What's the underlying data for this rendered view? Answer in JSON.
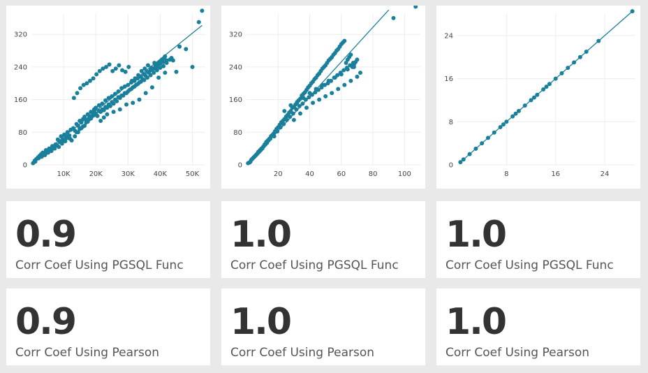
{
  "colors": {
    "accent": "#1a7f9a",
    "grid": "#ececec",
    "text": "#333333",
    "background": "#e9e9e9"
  },
  "chart_data": [
    {
      "type": "scatter",
      "xlim": [
        0,
        54000
      ],
      "ylim": [
        0,
        370
      ],
      "x_ticks": [
        10000,
        20000,
        30000,
        40000,
        50000
      ],
      "x_tick_labels": [
        "10K",
        "20K",
        "30K",
        "40K",
        "50K"
      ],
      "y_ticks": [
        0,
        80,
        160,
        240,
        320
      ],
      "y_tick_labels": [
        "0",
        "80",
        "160",
        "240",
        "320"
      ],
      "trendline": {
        "x": [
          500,
          53000
        ],
        "y": [
          8,
          342
        ]
      },
      "points": {
        "x": [
          500,
          1000,
          1500,
          2000,
          2500,
          3000,
          3500,
          4000,
          4500,
          5000,
          5500,
          6000,
          6500,
          7000,
          7500,
          1200,
          2200,
          3200,
          4200,
          5200,
          6200,
          7200,
          8000,
          8500,
          9000,
          9500,
          10000,
          10500,
          11000,
          11500,
          12000,
          8200,
          9200,
          10200,
          11200,
          12200,
          13000,
          13500,
          14000,
          14500,
          15000,
          15500,
          16000,
          16500,
          17000,
          17500,
          18000,
          18500,
          19000,
          19500,
          20000,
          21000,
          22000,
          23000,
          24000,
          25000,
          26000,
          27000,
          28000,
          29000,
          30000,
          31000,
          32000,
          33000,
          34000,
          35000,
          36000,
          37000,
          38000,
          39000,
          40000,
          41000,
          42000,
          13200,
          14200,
          15200,
          16200,
          17200,
          18200,
          19200,
          20200,
          21200,
          22200,
          23200,
          24200,
          25200,
          26200,
          27200,
          28200,
          29200,
          30200,
          31200,
          32200,
          33200,
          34200,
          35200,
          36200,
          37200,
          38200,
          39200,
          40200,
          41200,
          14000,
          15000,
          16000,
          17000,
          18000,
          19000,
          20000,
          21000,
          22000,
          23000,
          24000,
          25000,
          26000,
          27000,
          28000,
          29000,
          30000,
          31000,
          32000,
          33000,
          34000,
          35000,
          36000,
          37000,
          38000,
          39000,
          40000,
          41000,
          42000,
          43000,
          12500,
          13500,
          14500,
          15500,
          16500,
          17500,
          18500,
          19500,
          20500,
          21500,
          22500,
          23500,
          24500,
          25500,
          26500,
          27500,
          28500,
          29500,
          30500,
          31500,
          32500,
          33500,
          34500,
          35500,
          36500,
          37500,
          38500,
          39500,
          40500,
          41500,
          44000,
          45000,
          46000,
          48000,
          50000,
          52000,
          53000,
          43500,
          2800,
          3800,
          4800,
          5800,
          6800,
          7800,
          8800,
          9800,
          10800,
          11800,
          21500,
          22500,
          23500,
          25500,
          27500,
          29500,
          31500,
          33500,
          35500,
          37500,
          39500,
          41500
        ],
        "y": [
          4,
          10,
          14,
          18,
          22,
          26,
          30,
          28,
          36,
          34,
          40,
          38,
          46,
          44,
          50,
          8,
          16,
          20,
          24,
          30,
          34,
          40,
          48,
          44,
          56,
          52,
          60,
          58,
          66,
          70,
          64,
          62,
          70,
          74,
          80,
          86,
          90,
          84,
          100,
          96,
          108,
          104,
          112,
          118,
          110,
          124,
          120,
          130,
          128,
          136,
          140,
          146,
          150,
          158,
          164,
          168,
          174,
          180,
          188,
          192,
          196,
          202,
          206,
          212,
          216,
          222,
          228,
          232,
          236,
          240,
          248,
          252,
          256,
          164,
          176,
          188,
          196,
          200,
          206,
          212,
          222,
          230,
          236,
          240,
          246,
          230,
          236,
          244,
          232,
          228,
          240,
          206,
          212,
          220,
          230,
          236,
          244,
          238,
          250,
          246,
          254,
          262,
          80,
          88,
          94,
          104,
          112,
          120,
          126,
          132,
          136,
          142,
          148,
          154,
          160,
          166,
          170,
          176,
          180,
          186,
          192,
          198,
          204,
          208,
          214,
          220,
          226,
          232,
          238,
          242,
          250,
          258,
          60,
          70,
          80,
          90,
          96,
          106,
          114,
          122,
          120,
          130,
          134,
          140,
          144,
          150,
          156,
          164,
          170,
          176,
          184,
          190,
          196,
          202,
          210,
          218,
          226,
          234,
          242,
          250,
          258,
          266,
          256,
          228,
          290,
          284,
          240,
          350,
          378,
          262,
          20,
          26,
          30,
          38,
          42,
          48,
          56,
          62,
          68,
          72,
          108,
          116,
          124,
          130,
          136,
          148,
          152,
          160,
          176,
          190,
          214,
          226
        ]
      }
    },
    {
      "type": "scatter",
      "xlim": [
        0,
        110
      ],
      "ylim": [
        0,
        370
      ],
      "x_ticks": [
        20,
        40,
        60,
        80,
        100
      ],
      "x_tick_labels": [
        "20",
        "40",
        "60",
        "80",
        "100"
      ],
      "y_ticks": [
        0,
        80,
        160,
        240,
        320
      ],
      "y_tick_labels": [
        "0",
        "80",
        "160",
        "240",
        "320"
      ],
      "trendline": {
        "x": [
          1,
          90
        ],
        "y": [
          2,
          380
        ]
      },
      "points": {
        "x": [
          1,
          2,
          3,
          4,
          5,
          6,
          7,
          8,
          9,
          10,
          11,
          12,
          13,
          14,
          15,
          2.5,
          3.5,
          4.5,
          5.5,
          6.5,
          7.5,
          8.5,
          9.5,
          10.5,
          11.5,
          12.5,
          13.5,
          14.5,
          15.5,
          16,
          17,
          18,
          19,
          20,
          21,
          22,
          23,
          24,
          25,
          26,
          27,
          28,
          29,
          30,
          31,
          32,
          33,
          34,
          35,
          36,
          37,
          38,
          39,
          40,
          41,
          42,
          43,
          44,
          45,
          46,
          47,
          48,
          49,
          50,
          51,
          52,
          53,
          54,
          55,
          56,
          57,
          58,
          59,
          60,
          61,
          62,
          63,
          64,
          65,
          66,
          67,
          68,
          69,
          70,
          17.5,
          19.5,
          21.5,
          23.5,
          25.5,
          27.5,
          29.5,
          31.5,
          33.5,
          35.5,
          37.5,
          39.5,
          41.5,
          43.5,
          45.5,
          47.5,
          49.5,
          51.5,
          53.5,
          55.5,
          57.5,
          59.5,
          61.5,
          63.5,
          65.5,
          67.5,
          24,
          28,
          32,
          36,
          40,
          44,
          48,
          52,
          56,
          60,
          64,
          68,
          30,
          34,
          38,
          42,
          46,
          50,
          54,
          58,
          62,
          66,
          70,
          72,
          93,
          107
        ],
        "y": [
          4,
          6,
          12,
          16,
          20,
          24,
          28,
          32,
          36,
          40,
          46,
          50,
          54,
          60,
          64,
          8,
          14,
          18,
          22,
          26,
          32,
          36,
          40,
          44,
          50,
          56,
          60,
          64,
          70,
          72,
          76,
          82,
          88,
          92,
          98,
          104,
          108,
          112,
          118,
          122,
          128,
          132,
          140,
          142,
          148,
          152,
          158,
          162,
          170,
          174,
          178,
          184,
          190,
          194,
          200,
          204,
          210,
          214,
          220,
          224,
          230,
          236,
          240,
          244,
          250,
          256,
          260,
          264,
          270,
          274,
          280,
          284,
          290,
          296,
          300,
          304,
          250,
          258,
          264,
          270,
          240,
          246,
          252,
          258,
          70,
          82,
          92,
          100,
          110,
          118,
          126,
          136,
          144,
          150,
          160,
          166,
          172,
          178,
          184,
          190,
          196,
          200,
          206,
          214,
          220,
          226,
          232,
          238,
          244,
          250,
          132,
          146,
          154,
          164,
          176,
          186,
          196,
          206,
          214,
          222,
          234,
          240,
          110,
          126,
          140,
          152,
          160,
          168,
          176,
          186,
          196,
          206,
          216,
          226,
          360,
          388
        ]
      }
    },
    {
      "type": "scatter",
      "xlim": [
        0,
        29
      ],
      "ylim": [
        0,
        28
      ],
      "x_ticks": [
        8,
        16,
        24
      ],
      "x_tick_labels": [
        "8",
        "16",
        "24"
      ],
      "y_ticks": [
        0,
        8,
        16,
        24
      ],
      "y_tick_labels": [
        "0",
        "8",
        "16",
        "24"
      ],
      "trendline": {
        "x": [
          0.3,
          28.5
        ],
        "y": [
          0.3,
          28.5
        ]
      },
      "points": {
        "x": [
          0.5,
          1,
          2,
          3,
          4,
          5,
          6,
          7,
          7.5,
          8,
          9,
          9.5,
          10,
          11,
          12,
          12.5,
          13,
          14,
          14.5,
          15,
          16,
          17,
          18,
          19,
          20,
          21,
          23,
          28.5
        ],
        "y": [
          0.5,
          1,
          2,
          3,
          4,
          5,
          6,
          7,
          7.5,
          8,
          9,
          9.5,
          10,
          11,
          12,
          12.5,
          13,
          14,
          14.5,
          15,
          16,
          17,
          18,
          19,
          20,
          21,
          23,
          28.5
        ]
      }
    }
  ],
  "metrics": {
    "pgsql": [
      {
        "value": "0.9",
        "label": "Corr Coef Using PGSQL Func"
      },
      {
        "value": "1.0",
        "label": "Corr Coef Using PGSQL Func"
      },
      {
        "value": "1.0",
        "label": "Corr Coef Using PGSQL Func"
      }
    ],
    "pearson": [
      {
        "value": "0.9",
        "label": "Corr Coef Using Pearson"
      },
      {
        "value": "1.0",
        "label": "Corr Coef Using Pearson"
      },
      {
        "value": "1.0",
        "label": "Corr Coef Using Pearson"
      }
    ]
  }
}
